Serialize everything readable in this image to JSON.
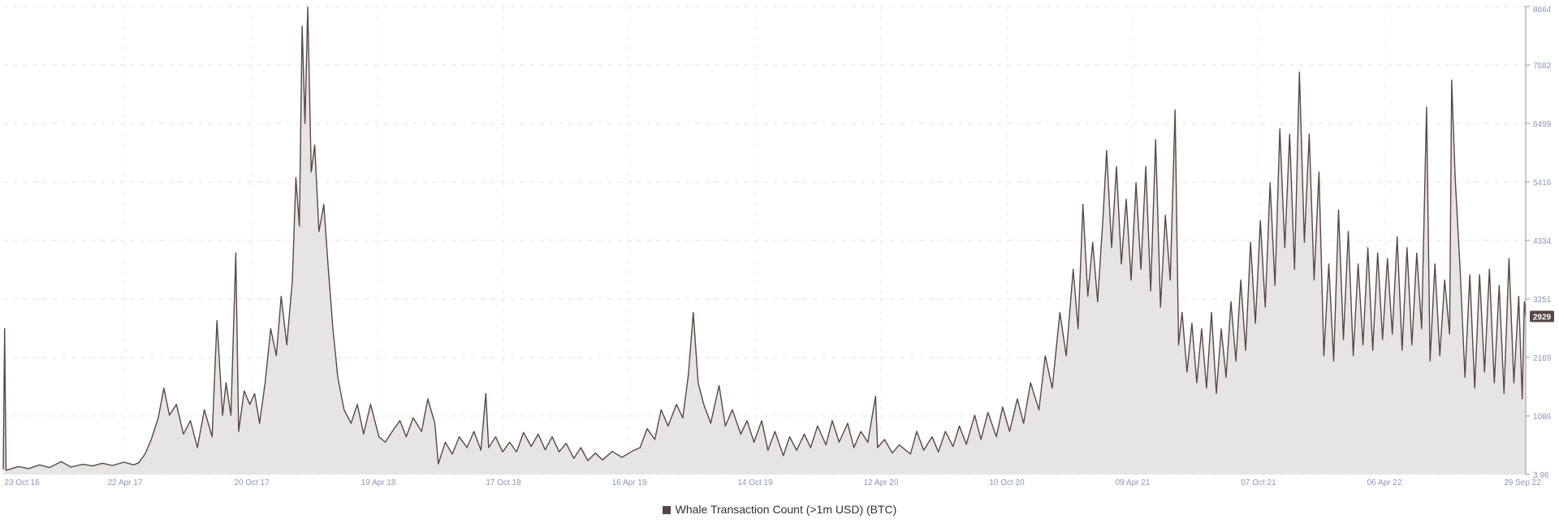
{
  "chart_data": {
    "type": "area",
    "x_ticks": [
      "23 Oct 16",
      "22 Apr 17",
      "20 Oct 17",
      "19 Apr 18",
      "17 Oct 18",
      "16 Apr 19",
      "14 Oct 19",
      "12 Apr 20",
      "10 Oct 20",
      "09 Apr 21",
      "07 Oct 21",
      "06 Apr 22",
      "29 Sep 22"
    ],
    "y_ticks": [
      "3.96",
      "1086",
      "2169",
      "3251",
      "4334",
      "5416",
      "6499",
      "7582",
      "8664"
    ],
    "ylim": [
      3.96,
      8664
    ],
    "grid": true,
    "last_value_label": "2929",
    "series": [
      {
        "name": "Whale Transaction Count (>1m USD) (BTC)",
        "color": "#574847",
        "fill": "#e7e5e3",
        "points": [
          [
            "2016-10-10",
            100
          ],
          [
            "2016-10-12",
            2700
          ],
          [
            "2016-10-14",
            80
          ],
          [
            "2016-11-01",
            150
          ],
          [
            "2016-11-15",
            110
          ],
          [
            "2016-12-01",
            180
          ],
          [
            "2016-12-15",
            130
          ],
          [
            "2017-01-01",
            240
          ],
          [
            "2017-01-15",
            140
          ],
          [
            "2017-02-01",
            190
          ],
          [
            "2017-02-15",
            160
          ],
          [
            "2017-03-01",
            210
          ],
          [
            "2017-03-15",
            170
          ],
          [
            "2017-04-01",
            230
          ],
          [
            "2017-04-15",
            180
          ],
          [
            "2017-04-22",
            220
          ],
          [
            "2017-05-01",
            380
          ],
          [
            "2017-05-10",
            650
          ],
          [
            "2017-05-20",
            1050
          ],
          [
            "2017-05-28",
            1600
          ],
          [
            "2017-06-05",
            1100
          ],
          [
            "2017-06-15",
            1300
          ],
          [
            "2017-06-25",
            750
          ],
          [
            "2017-07-05",
            1000
          ],
          [
            "2017-07-15",
            500
          ],
          [
            "2017-07-25",
            1200
          ],
          [
            "2017-08-05",
            700
          ],
          [
            "2017-08-12",
            2850
          ],
          [
            "2017-08-20",
            1100
          ],
          [
            "2017-08-25",
            1700
          ],
          [
            "2017-09-01",
            1100
          ],
          [
            "2017-09-08",
            4100
          ],
          [
            "2017-09-12",
            800
          ],
          [
            "2017-09-20",
            1550
          ],
          [
            "2017-09-28",
            1300
          ],
          [
            "2017-10-05",
            1500
          ],
          [
            "2017-10-12",
            950
          ],
          [
            "2017-10-20",
            1700
          ],
          [
            "2017-10-28",
            2700
          ],
          [
            "2017-11-05",
            2200
          ],
          [
            "2017-11-12",
            3300
          ],
          [
            "2017-11-20",
            2400
          ],
          [
            "2017-11-28",
            3600
          ],
          [
            "2017-12-03",
            5500
          ],
          [
            "2017-12-08",
            4600
          ],
          [
            "2017-12-12",
            8300
          ],
          [
            "2017-12-16",
            6500
          ],
          [
            "2017-12-20",
            8650
          ],
          [
            "2017-12-25",
            5600
          ],
          [
            "2017-12-30",
            6100
          ],
          [
            "2018-01-05",
            4500
          ],
          [
            "2018-01-12",
            5000
          ],
          [
            "2018-01-18",
            3900
          ],
          [
            "2018-01-25",
            2700
          ],
          [
            "2018-02-01",
            1800
          ],
          [
            "2018-02-10",
            1200
          ],
          [
            "2018-02-20",
            950
          ],
          [
            "2018-03-01",
            1300
          ],
          [
            "2018-03-10",
            750
          ],
          [
            "2018-03-20",
            1300
          ],
          [
            "2018-04-01",
            700
          ],
          [
            "2018-04-10",
            600
          ],
          [
            "2018-04-20",
            800
          ],
          [
            "2018-05-01",
            1000
          ],
          [
            "2018-05-10",
            700
          ],
          [
            "2018-05-20",
            1050
          ],
          [
            "2018-06-01",
            800
          ],
          [
            "2018-06-10",
            1400
          ],
          [
            "2018-06-20",
            950
          ],
          [
            "2018-06-25",
            200
          ],
          [
            "2018-07-05",
            600
          ],
          [
            "2018-07-15",
            380
          ],
          [
            "2018-07-25",
            700
          ],
          [
            "2018-08-05",
            500
          ],
          [
            "2018-08-15",
            800
          ],
          [
            "2018-08-25",
            450
          ],
          [
            "2018-09-01",
            1500
          ],
          [
            "2018-09-05",
            500
          ],
          [
            "2018-09-15",
            700
          ],
          [
            "2018-09-25",
            420
          ],
          [
            "2018-10-05",
            600
          ],
          [
            "2018-10-15",
            420
          ],
          [
            "2018-10-25",
            780
          ],
          [
            "2018-11-05",
            520
          ],
          [
            "2018-11-15",
            750
          ],
          [
            "2018-11-25",
            460
          ],
          [
            "2018-12-05",
            700
          ],
          [
            "2018-12-15",
            420
          ],
          [
            "2018-12-25",
            580
          ],
          [
            "2019-01-05",
            300
          ],
          [
            "2019-01-15",
            500
          ],
          [
            "2019-01-25",
            260
          ],
          [
            "2019-02-05",
            400
          ],
          [
            "2019-02-15",
            270
          ],
          [
            "2019-03-01",
            430
          ],
          [
            "2019-03-15",
            320
          ],
          [
            "2019-04-01",
            450
          ],
          [
            "2019-04-10",
            500
          ],
          [
            "2019-04-20",
            850
          ],
          [
            "2019-05-01",
            650
          ],
          [
            "2019-05-10",
            1200
          ],
          [
            "2019-05-20",
            900
          ],
          [
            "2019-06-01",
            1300
          ],
          [
            "2019-06-10",
            1050
          ],
          [
            "2019-06-18",
            1850
          ],
          [
            "2019-06-25",
            3000
          ],
          [
            "2019-07-02",
            1700
          ],
          [
            "2019-07-10",
            1300
          ],
          [
            "2019-07-20",
            950
          ],
          [
            "2019-08-01",
            1650
          ],
          [
            "2019-08-10",
            900
          ],
          [
            "2019-08-20",
            1200
          ],
          [
            "2019-09-01",
            750
          ],
          [
            "2019-09-10",
            1000
          ],
          [
            "2019-09-20",
            600
          ],
          [
            "2019-10-01",
            1000
          ],
          [
            "2019-10-10",
            450
          ],
          [
            "2019-10-20",
            800
          ],
          [
            "2019-11-01",
            350
          ],
          [
            "2019-11-10",
            700
          ],
          [
            "2019-11-20",
            450
          ],
          [
            "2019-12-01",
            750
          ],
          [
            "2019-12-10",
            500
          ],
          [
            "2019-12-20",
            900
          ],
          [
            "2020-01-01",
            550
          ],
          [
            "2020-01-10",
            1000
          ],
          [
            "2020-01-20",
            600
          ],
          [
            "2020-02-01",
            950
          ],
          [
            "2020-02-10",
            500
          ],
          [
            "2020-02-20",
            800
          ],
          [
            "2020-03-01",
            600
          ],
          [
            "2020-03-12",
            1450
          ],
          [
            "2020-03-15",
            500
          ],
          [
            "2020-03-25",
            650
          ],
          [
            "2020-04-05",
            400
          ],
          [
            "2020-04-15",
            550
          ],
          [
            "2020-05-01",
            380
          ],
          [
            "2020-05-10",
            800
          ],
          [
            "2020-05-20",
            450
          ],
          [
            "2020-06-01",
            700
          ],
          [
            "2020-06-10",
            420
          ],
          [
            "2020-06-20",
            800
          ],
          [
            "2020-07-01",
            520
          ],
          [
            "2020-07-10",
            900
          ],
          [
            "2020-07-20",
            560
          ],
          [
            "2020-08-01",
            1100
          ],
          [
            "2020-08-10",
            650
          ],
          [
            "2020-08-20",
            1150
          ],
          [
            "2020-09-01",
            700
          ],
          [
            "2020-09-10",
            1250
          ],
          [
            "2020-09-20",
            800
          ],
          [
            "2020-10-01",
            1400
          ],
          [
            "2020-10-10",
            950
          ],
          [
            "2020-10-20",
            1700
          ],
          [
            "2020-11-01",
            1200
          ],
          [
            "2020-11-10",
            2200
          ],
          [
            "2020-11-20",
            1600
          ],
          [
            "2020-12-01",
            3000
          ],
          [
            "2020-12-10",
            2200
          ],
          [
            "2020-12-20",
            3800
          ],
          [
            "2020-12-27",
            2700
          ],
          [
            "2021-01-03",
            5000
          ],
          [
            "2021-01-10",
            3300
          ],
          [
            "2021-01-17",
            4300
          ],
          [
            "2021-01-24",
            3200
          ],
          [
            "2021-02-01",
            4800
          ],
          [
            "2021-02-06",
            6000
          ],
          [
            "2021-02-13",
            4200
          ],
          [
            "2021-02-20",
            5700
          ],
          [
            "2021-02-27",
            3900
          ],
          [
            "2021-03-06",
            5100
          ],
          [
            "2021-03-13",
            3600
          ],
          [
            "2021-03-20",
            5400
          ],
          [
            "2021-03-27",
            3800
          ],
          [
            "2021-04-03",
            5700
          ],
          [
            "2021-04-10",
            3400
          ],
          [
            "2021-04-17",
            6200
          ],
          [
            "2021-04-24",
            3100
          ],
          [
            "2021-05-01",
            4800
          ],
          [
            "2021-05-08",
            3600
          ],
          [
            "2021-05-15",
            6750
          ],
          [
            "2021-05-20",
            2400
          ],
          [
            "2021-05-25",
            3000
          ],
          [
            "2021-06-01",
            1900
          ],
          [
            "2021-06-08",
            2800
          ],
          [
            "2021-06-15",
            1700
          ],
          [
            "2021-06-22",
            2700
          ],
          [
            "2021-06-29",
            1600
          ],
          [
            "2021-07-06",
            3000
          ],
          [
            "2021-07-13",
            1500
          ],
          [
            "2021-07-20",
            2700
          ],
          [
            "2021-07-27",
            1800
          ],
          [
            "2021-08-03",
            3200
          ],
          [
            "2021-08-10",
            2100
          ],
          [
            "2021-08-17",
            3600
          ],
          [
            "2021-08-24",
            2300
          ],
          [
            "2021-08-31",
            4300
          ],
          [
            "2021-09-07",
            2800
          ],
          [
            "2021-09-14",
            4700
          ],
          [
            "2021-09-21",
            3100
          ],
          [
            "2021-09-28",
            5400
          ],
          [
            "2021-10-05",
            3500
          ],
          [
            "2021-10-12",
            6400
          ],
          [
            "2021-10-19",
            4200
          ],
          [
            "2021-10-26",
            6300
          ],
          [
            "2021-11-02",
            3800
          ],
          [
            "2021-11-09",
            7450
          ],
          [
            "2021-11-16",
            4300
          ],
          [
            "2021-11-23",
            6300
          ],
          [
            "2021-11-30",
            3600
          ],
          [
            "2021-12-07",
            5600
          ],
          [
            "2021-12-14",
            2200
          ],
          [
            "2021-12-21",
            3900
          ],
          [
            "2021-12-28",
            2100
          ],
          [
            "2022-01-04",
            4900
          ],
          [
            "2022-01-11",
            2500
          ],
          [
            "2022-01-18",
            4500
          ],
          [
            "2022-01-25",
            2200
          ],
          [
            "2022-02-01",
            3900
          ],
          [
            "2022-02-08",
            2400
          ],
          [
            "2022-02-15",
            4200
          ],
          [
            "2022-02-22",
            2300
          ],
          [
            "2022-03-01",
            4100
          ],
          [
            "2022-03-08",
            2500
          ],
          [
            "2022-03-15",
            4000
          ],
          [
            "2022-03-22",
            2600
          ],
          [
            "2022-03-29",
            4400
          ],
          [
            "2022-04-05",
            2300
          ],
          [
            "2022-04-12",
            4200
          ],
          [
            "2022-04-19",
            2400
          ],
          [
            "2022-04-26",
            4100
          ],
          [
            "2022-05-03",
            2700
          ],
          [
            "2022-05-10",
            6800
          ],
          [
            "2022-05-15",
            2100
          ],
          [
            "2022-05-22",
            3900
          ],
          [
            "2022-05-29",
            2200
          ],
          [
            "2022-06-05",
            3600
          ],
          [
            "2022-06-12",
            2600
          ],
          [
            "2022-06-15",
            7300
          ],
          [
            "2022-06-20",
            5500
          ],
          [
            "2022-06-27",
            3800
          ],
          [
            "2022-07-04",
            1800
          ],
          [
            "2022-07-11",
            3700
          ],
          [
            "2022-07-18",
            1600
          ],
          [
            "2022-07-25",
            3700
          ],
          [
            "2022-08-01",
            1900
          ],
          [
            "2022-08-08",
            3800
          ],
          [
            "2022-08-15",
            1700
          ],
          [
            "2022-08-22",
            3500
          ],
          [
            "2022-08-29",
            1500
          ],
          [
            "2022-09-05",
            4000
          ],
          [
            "2022-09-12",
            1700
          ],
          [
            "2022-09-19",
            3300
          ],
          [
            "2022-09-24",
            1400
          ],
          [
            "2022-09-27",
            3200
          ],
          [
            "2022-09-29",
            2929
          ]
        ]
      }
    ]
  }
}
